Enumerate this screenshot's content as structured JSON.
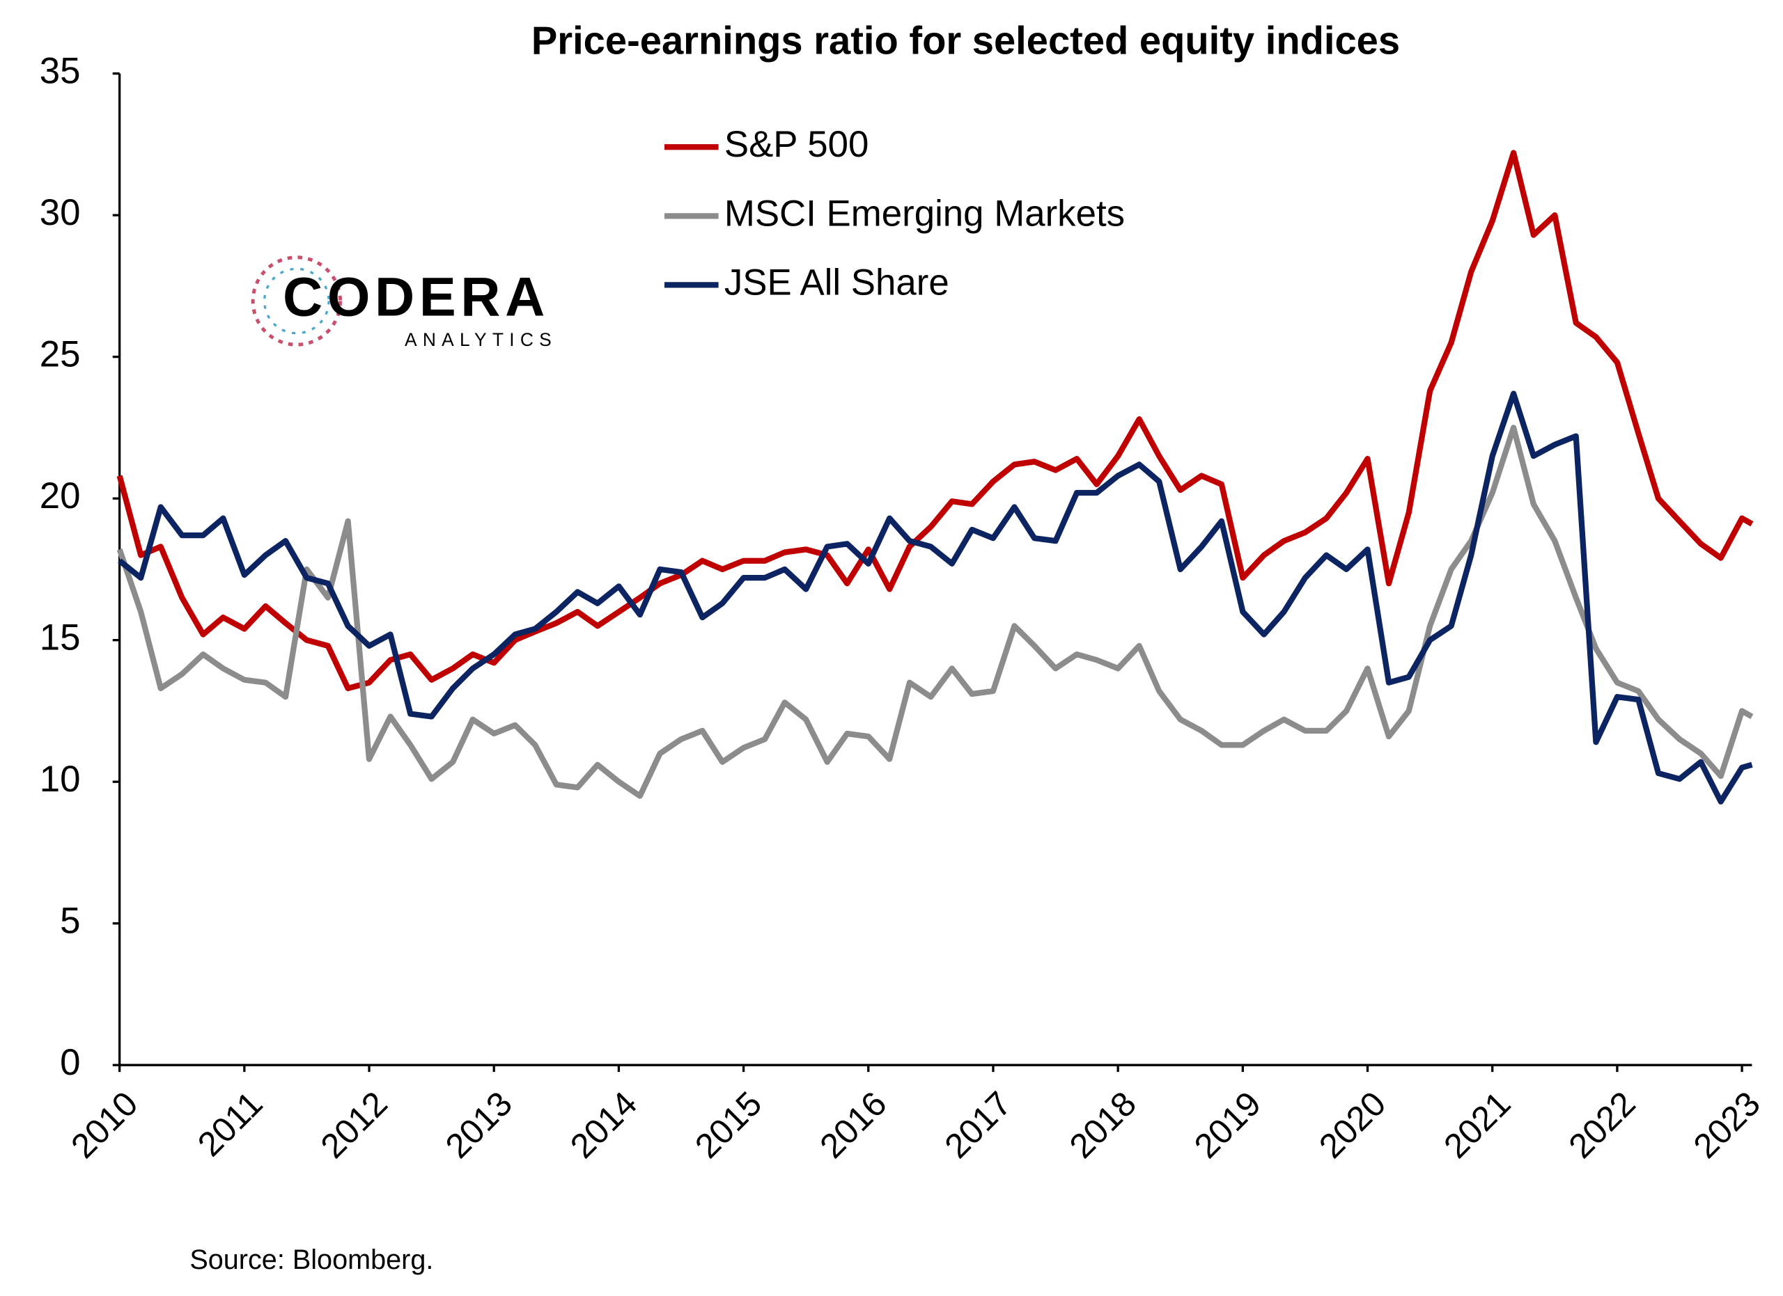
{
  "chart_data": {
    "type": "line",
    "title": "Price-earnings ratio for selected equity indices",
    "source": "Source: Bloomberg.",
    "logo": {
      "name": "CODERA",
      "tagline": "ANALYTICS"
    },
    "x": [
      2010,
      2010.17,
      2010.33,
      2010.5,
      2010.67,
      2010.83,
      2011,
      2011.17,
      2011.33,
      2011.5,
      2011.67,
      2011.83,
      2012,
      2012.17,
      2012.33,
      2012.5,
      2012.67,
      2012.83,
      2013,
      2013.17,
      2013.33,
      2013.5,
      2013.67,
      2013.83,
      2014,
      2014.17,
      2014.33,
      2014.5,
      2014.67,
      2014.83,
      2015,
      2015.17,
      2015.33,
      2015.5,
      2015.67,
      2015.83,
      2016,
      2016.17,
      2016.33,
      2016.5,
      2016.67,
      2016.83,
      2017,
      2017.17,
      2017.33,
      2017.5,
      2017.67,
      2017.83,
      2018,
      2018.17,
      2018.33,
      2018.5,
      2018.67,
      2018.83,
      2019,
      2019.17,
      2019.33,
      2019.5,
      2019.67,
      2019.83,
      2020,
      2020.17,
      2020.33,
      2020.5,
      2020.67,
      2020.83,
      2021,
      2021.17,
      2021.33,
      2021.5,
      2021.67,
      2021.83,
      2022,
      2022.17,
      2022.33,
      2022.5,
      2022.67,
      2022.83,
      2023,
      2023.08
    ],
    "series": [
      {
        "name": "S&P 500",
        "color": "#c00000",
        "values": [
          20.8,
          18.0,
          18.3,
          16.5,
          15.2,
          15.8,
          15.4,
          16.2,
          15.6,
          15.0,
          14.8,
          13.3,
          13.5,
          14.3,
          14.5,
          13.6,
          14.0,
          14.5,
          14.2,
          15.0,
          15.3,
          15.6,
          16.0,
          15.5,
          16.0,
          16.5,
          17.0,
          17.3,
          17.8,
          17.5,
          17.8,
          17.8,
          18.1,
          18.2,
          18.0,
          17.0,
          18.2,
          16.8,
          18.3,
          19.0,
          19.9,
          19.8,
          20.6,
          21.2,
          21.3,
          21.0,
          21.4,
          20.5,
          21.5,
          22.8,
          21.5,
          20.3,
          20.8,
          20.5,
          17.2,
          18.0,
          18.5,
          18.8,
          19.3,
          20.2,
          21.4,
          17.0,
          19.5,
          23.8,
          25.5,
          28.0,
          29.8,
          32.2,
          29.3,
          30.0,
          26.2,
          25.7,
          24.8,
          22.3,
          20.0,
          19.2,
          18.4,
          17.9,
          19.3,
          19.1
        ]
      },
      {
        "name": "MSCI Emerging Markets",
        "color": "#8c8c8c",
        "values": [
          18.2,
          16.0,
          13.3,
          13.8,
          14.5,
          14.0,
          13.6,
          13.5,
          13.0,
          17.5,
          16.5,
          19.2,
          10.8,
          12.3,
          11.3,
          10.1,
          10.7,
          12.2,
          11.7,
          12.0,
          11.3,
          9.9,
          9.8,
          10.6,
          10.0,
          9.5,
          11.0,
          11.5,
          11.8,
          10.7,
          11.2,
          11.5,
          12.8,
          12.2,
          10.7,
          11.7,
          11.6,
          10.8,
          13.5,
          13.0,
          14.0,
          13.1,
          13.2,
          15.5,
          14.8,
          14.0,
          14.5,
          14.3,
          14.0,
          14.8,
          13.2,
          12.2,
          11.8,
          11.3,
          11.3,
          11.8,
          12.2,
          11.8,
          11.8,
          12.5,
          14.0,
          11.6,
          12.5,
          15.5,
          17.5,
          18.5,
          20.2,
          22.5,
          19.8,
          18.5,
          16.5,
          14.7,
          13.5,
          13.2,
          12.2,
          11.5,
          11.0,
          10.2,
          12.5,
          12.3
        ]
      },
      {
        "name": "JSE All Share",
        "color": "#0c2461",
        "values": [
          17.8,
          17.2,
          19.7,
          18.7,
          18.7,
          19.3,
          17.3,
          18.0,
          18.5,
          17.2,
          17.0,
          15.5,
          14.8,
          15.2,
          12.4,
          12.3,
          13.3,
          14.0,
          14.5,
          15.2,
          15.4,
          16.0,
          16.7,
          16.3,
          16.9,
          15.9,
          17.5,
          17.4,
          15.8,
          16.3,
          17.2,
          17.2,
          17.5,
          16.8,
          18.3,
          18.4,
          17.7,
          19.3,
          18.5,
          18.3,
          17.7,
          18.9,
          18.6,
          19.7,
          18.6,
          18.5,
          20.2,
          20.2,
          20.8,
          21.2,
          20.6,
          17.5,
          18.3,
          19.2,
          16.0,
          15.2,
          16.0,
          17.2,
          18.0,
          17.5,
          18.2,
          13.5,
          13.7,
          15.0,
          15.5,
          18.0,
          21.5,
          23.7,
          21.5,
          21.9,
          22.2,
          11.4,
          13.0,
          12.9,
          10.3,
          10.1,
          10.7,
          9.3,
          10.5,
          10.6
        ]
      }
    ],
    "xlim": [
      2010,
      2023.08
    ],
    "xticks": [
      2010,
      2011,
      2012,
      2013,
      2014,
      2015,
      2016,
      2017,
      2018,
      2019,
      2020,
      2021,
      2022,
      2023
    ],
    "ylim": [
      0,
      35
    ],
    "yticks": [
      0,
      5,
      10,
      15,
      20,
      25,
      30,
      35
    ],
    "grid": false,
    "legend": "top-center"
  }
}
